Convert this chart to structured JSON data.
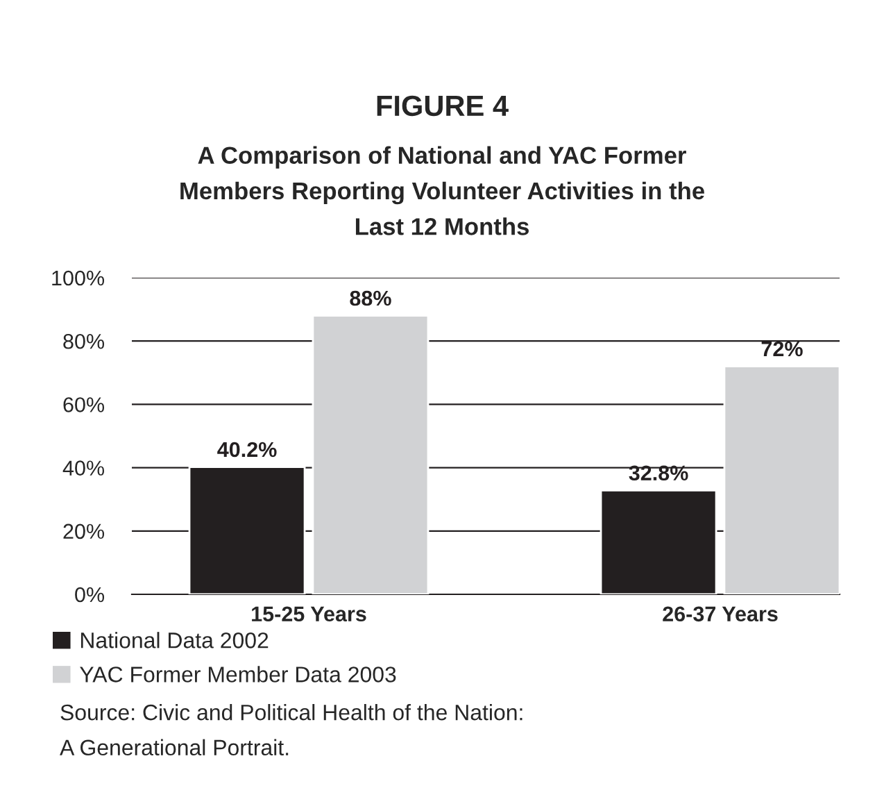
{
  "chart_data": {
    "type": "bar",
    "title": "FIGURE 4",
    "subtitle": "A Comparison of National and YAC Former\nMembers Reporting Volunteer Activities in the\nLast 12 Months",
    "categories": [
      "15-25 Years",
      "26-37 Years"
    ],
    "series": [
      {
        "name": "National Data 2002",
        "color": "#231f20",
        "values": [
          40.2,
          32.8
        ],
        "value_labels": [
          "40.2%",
          "32.8%"
        ]
      },
      {
        "name": "YAC Former Member Data 2003",
        "color": "#d1d2d4",
        "values": [
          88,
          72
        ],
        "value_labels": [
          "88%",
          "72%"
        ]
      }
    ],
    "ylim": [
      0,
      100
    ],
    "yticks": [
      {
        "value": 0,
        "label": "0%"
      },
      {
        "value": 20,
        "label": "20%"
      },
      {
        "value": 40,
        "label": "40%"
      },
      {
        "value": 60,
        "label": "60%"
      },
      {
        "value": 80,
        "label": "80%"
      },
      {
        "value": 100,
        "label": "100%"
      }
    ],
    "grid": "y",
    "legend": "bottom",
    "annotations": [
      "Source: Civic and Political Health of the Nation:\nA Generational Portrait."
    ]
  }
}
